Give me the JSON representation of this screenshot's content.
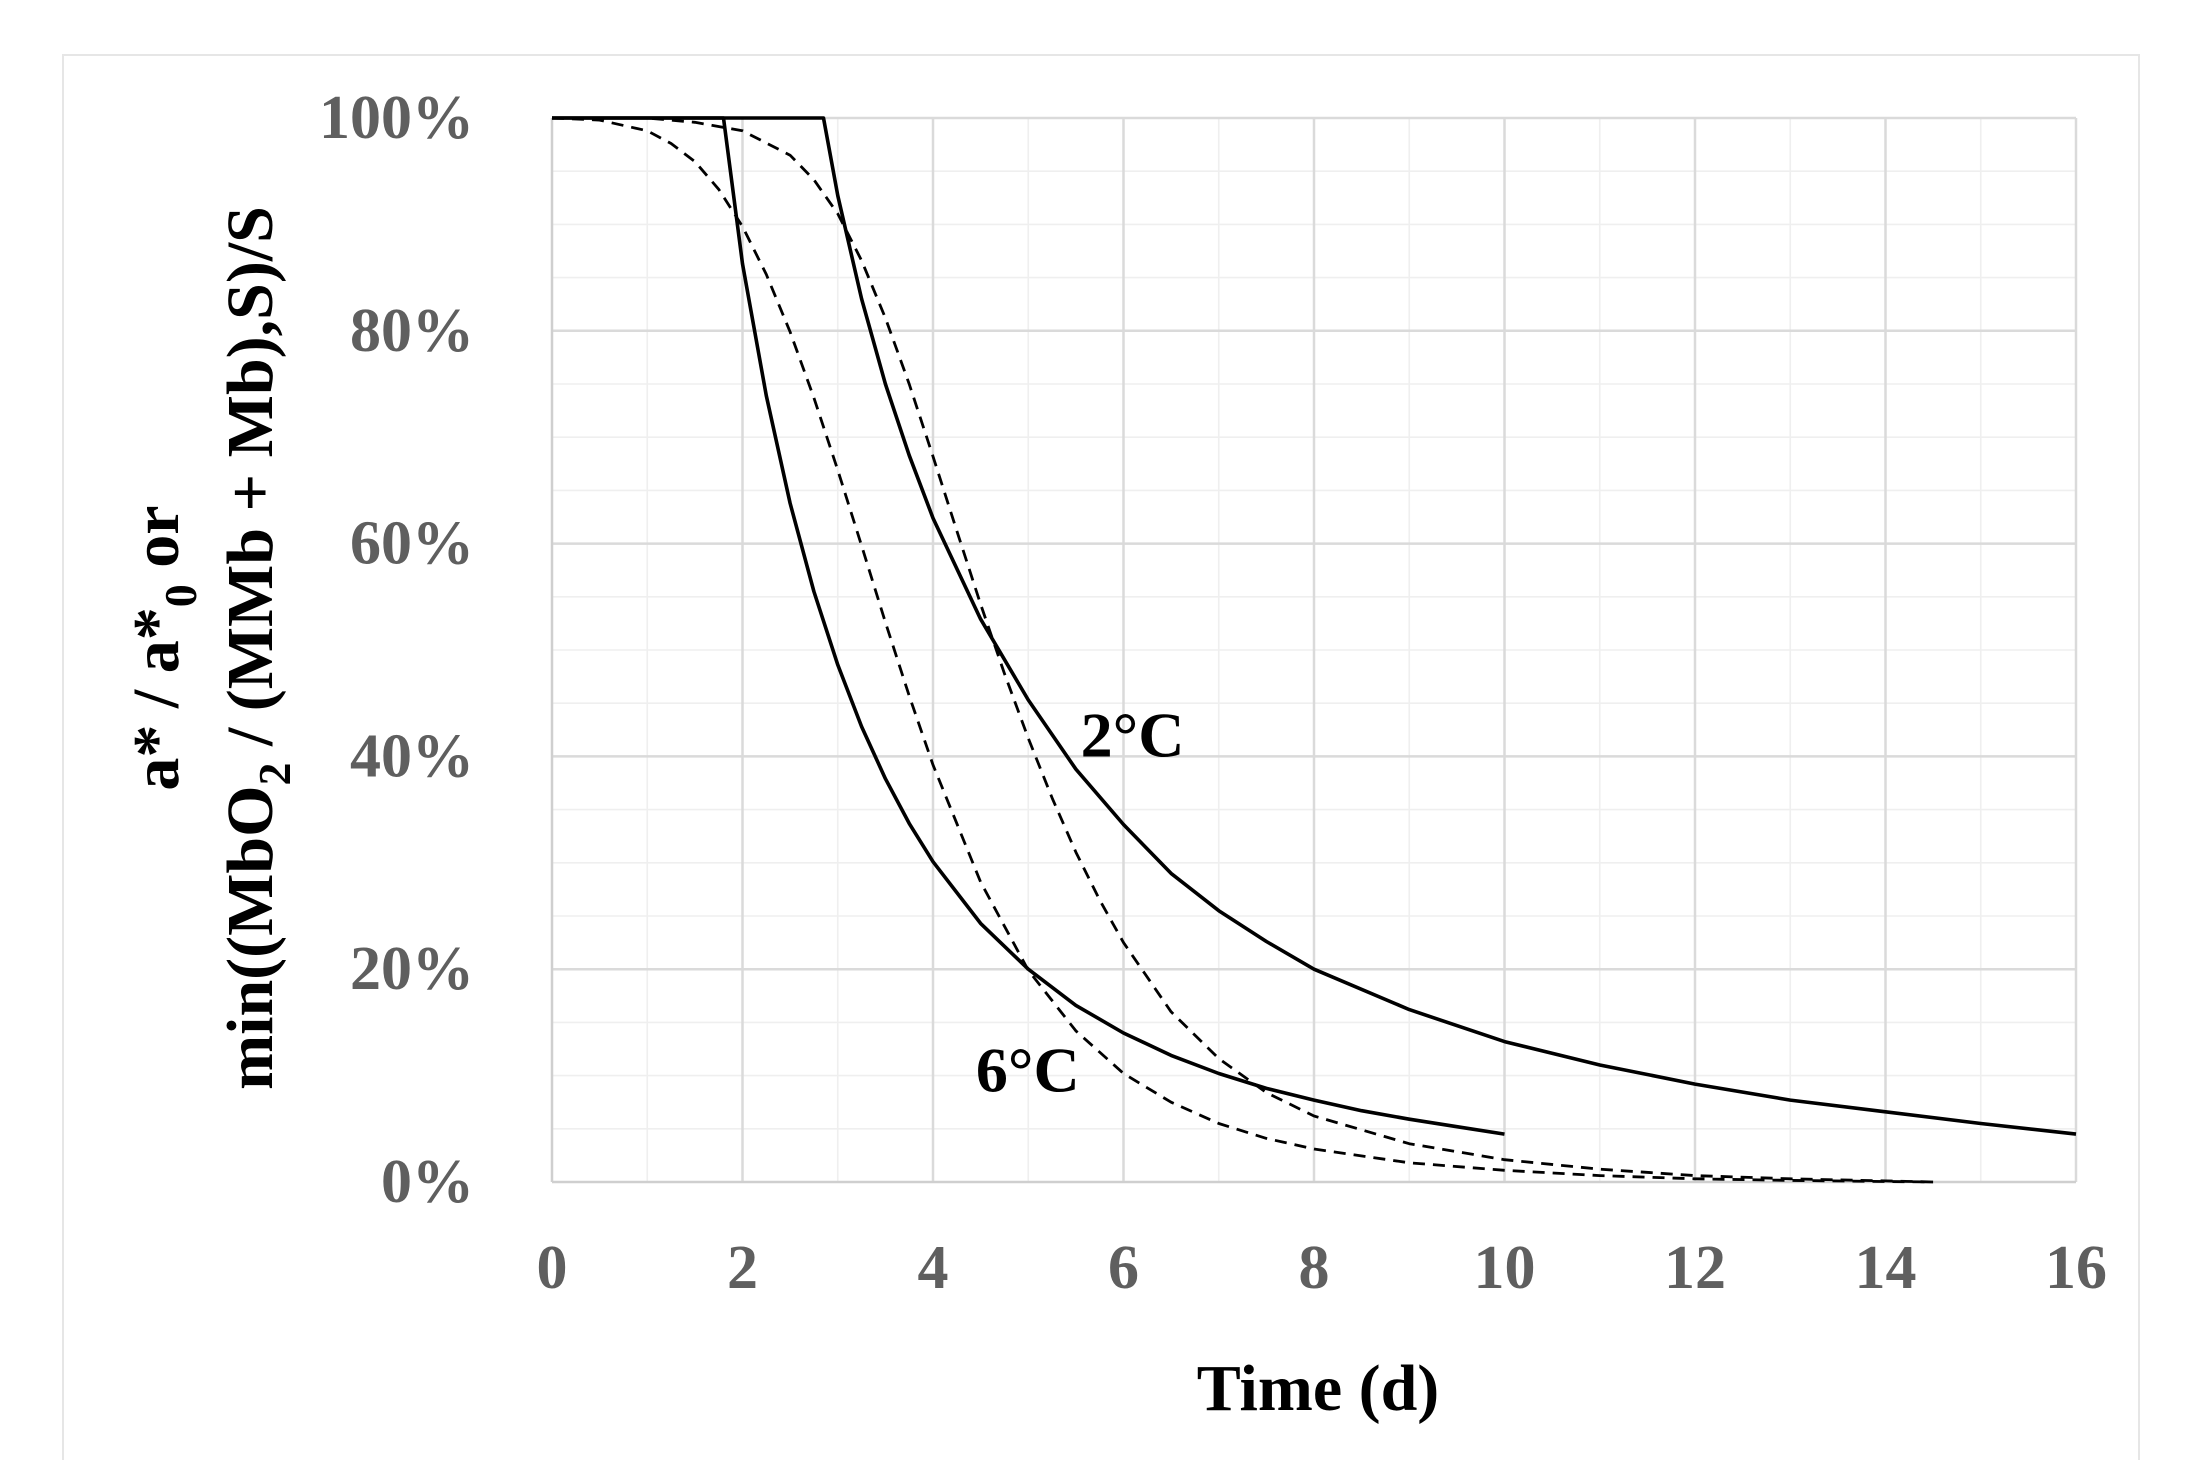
{
  "chart_data": {
    "type": "line",
    "title": "",
    "xlabel": "Time (d)",
    "ylabel_line1": "a* / a*",
    "ylabel_line1_sub": "0",
    "ylabel_line1_tail": " or",
    "ylabel_line2_pre": "min((MbO",
    "ylabel_line2_sub": "2",
    "ylabel_line2_tail": " / (MMb + Mb),S)/S",
    "xlim": [
      0,
      16
    ],
    "ylim": [
      0,
      100
    ],
    "x_ticks": [
      "0",
      "2",
      "4",
      "6",
      "8",
      "10",
      "12",
      "14",
      "16"
    ],
    "y_ticks": [
      "0%",
      "20%",
      "40%",
      "60%",
      "80%",
      "100%"
    ],
    "x_tick_values": [
      0,
      2,
      4,
      6,
      8,
      10,
      12,
      14,
      16
    ],
    "y_tick_values": [
      0,
      20,
      40,
      60,
      80,
      100
    ],
    "grid": true,
    "annotations": [
      {
        "name": "label-2c",
        "text": "2°C",
        "x": 5.55,
        "y": 40
      },
      {
        "name": "label-6c",
        "text": "6°C",
        "x": 4.45,
        "y": 8.5
      }
    ],
    "series": [
      {
        "name": "6°C solid",
        "style": "solid",
        "x": [
          0,
          1.8,
          2.0,
          2.25,
          2.5,
          2.75,
          3.0,
          3.25,
          3.5,
          3.75,
          4.0,
          4.5,
          5.0,
          5.5,
          6.0,
          6.5,
          7.0,
          7.5,
          8.0,
          8.5,
          9.0,
          9.5,
          10.0
        ],
        "y": [
          100,
          100,
          86.3,
          73.9,
          63.8,
          55.5,
          48.6,
          42.8,
          37.9,
          33.7,
          30.1,
          24.3,
          20.0,
          16.6,
          14.0,
          11.9,
          10.2,
          8.8,
          7.7,
          6.7,
          5.9,
          5.2,
          4.5
        ]
      },
      {
        "name": "2°C solid",
        "style": "solid",
        "x": [
          0,
          2.85,
          3.0,
          3.25,
          3.5,
          3.75,
          4.0,
          4.5,
          5.0,
          5.5,
          6.0,
          6.5,
          7.0,
          7.5,
          8.0,
          9.0,
          10.0,
          11.0,
          12.0,
          13.0,
          14.0,
          15.0,
          16.0
        ],
        "y": [
          100,
          100,
          92.7,
          83.0,
          75.0,
          68.3,
          62.4,
          52.9,
          45.3,
          38.8,
          33.6,
          29.0,
          25.5,
          22.6,
          20.0,
          16.2,
          13.2,
          11.0,
          9.2,
          7.7,
          6.6,
          5.5,
          4.5
        ]
      },
      {
        "name": "6°C dashed",
        "style": "dashed",
        "x": [
          0,
          0.5,
          1.0,
          1.25,
          1.5,
          1.75,
          2.0,
          2.25,
          2.5,
          2.75,
          3.0,
          3.25,
          3.5,
          3.75,
          4.0,
          4.5,
          5.0,
          5.5,
          6.0,
          6.5,
          7.0,
          7.5,
          8.0,
          9.0,
          10.0,
          11.0,
          12.0,
          13.0,
          14.0,
          14.5
        ],
        "y": [
          100,
          99.8,
          98.8,
          97.6,
          95.9,
          93.3,
          89.8,
          85.3,
          79.9,
          73.7,
          66.9,
          59.8,
          52.6,
          45.7,
          39.2,
          28.2,
          19.9,
          14.2,
          10.2,
          7.5,
          5.5,
          4.1,
          3.1,
          1.8,
          1.1,
          0.6,
          0.3,
          0.15,
          0.05,
          0
        ]
      },
      {
        "name": "2°C dashed",
        "style": "dashed",
        "x": [
          0,
          1.0,
          1.5,
          2.0,
          2.5,
          2.75,
          3.0,
          3.25,
          3.5,
          3.75,
          4.0,
          4.25,
          4.5,
          4.75,
          5.0,
          5.25,
          5.5,
          5.75,
          6.0,
          6.5,
          7.0,
          7.5,
          8.0,
          9.0,
          10.0,
          11.0,
          12.0,
          13.0,
          14.0,
          14.5
        ],
        "y": [
          100,
          100,
          99.6,
          98.8,
          96.5,
          94.2,
          91.0,
          86.6,
          81.2,
          75.0,
          68.2,
          61.2,
          54.3,
          47.8,
          41.7,
          36.1,
          31.0,
          26.5,
          22.5,
          16.0,
          11.6,
          8.4,
          6.2,
          3.6,
          2.1,
          1.2,
          0.6,
          0.3,
          0.1,
          0
        ]
      }
    ]
  }
}
